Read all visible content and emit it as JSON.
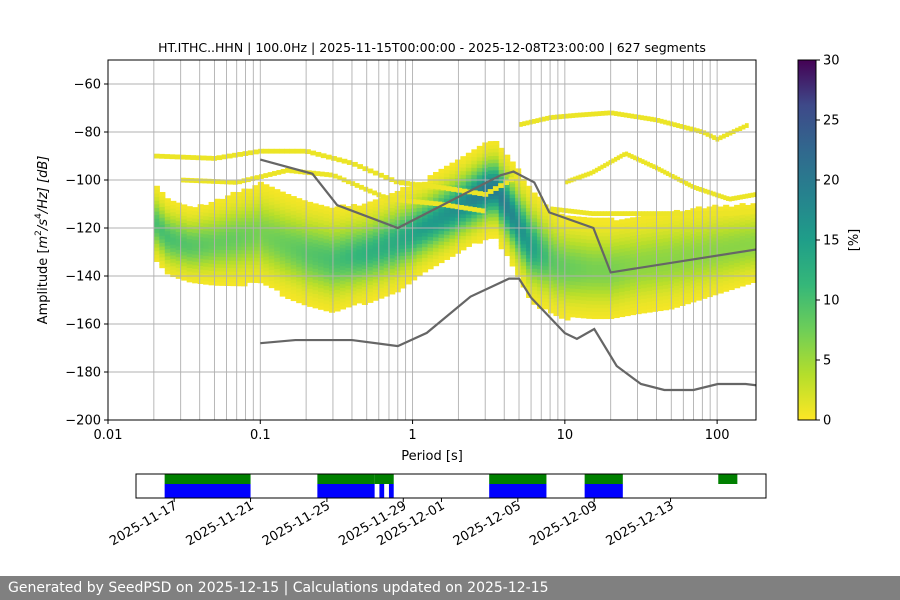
{
  "footer_text": "Generated by SeedPSD on 2025-12-15 | Calculations updated on 2025-12-15",
  "colors": {
    "noise_model": "#666666",
    "availability_data": "#0000ff",
    "availability_gaps": "#008000",
    "grid": "#b0b0b0"
  },
  "chart_data": [
    {
      "type": "heatmap",
      "title": "HT.ITHC..HHN | 100.0Hz | 2025-11-15T00:00:00 - 2025-12-08T23:00:00 | 627 segments",
      "xlabel": "Period [s]",
      "ylabel_parts": [
        "Amplitude [",
        "m",
        "2",
        "/s",
        "4",
        "/Hz] [dB]"
      ],
      "xscale": "log",
      "xlim": [
        0.01,
        180
      ],
      "ylim": [
        -200,
        -50
      ],
      "grid": true,
      "x_ticks": [
        {
          "value": 0.01,
          "label": "0.01"
        },
        {
          "value": 0.1,
          "label": "0.1"
        },
        {
          "value": 1,
          "label": "1"
        },
        {
          "value": 10,
          "label": "10"
        },
        {
          "value": 100,
          "label": "100"
        }
      ],
      "y_ticks": [
        {
          "value": -60,
          "label": "−60"
        },
        {
          "value": -80,
          "label": "−80"
        },
        {
          "value": -100,
          "label": "−100"
        },
        {
          "value": -120,
          "label": "−120"
        },
        {
          "value": -140,
          "label": "−140"
        },
        {
          "value": -160,
          "label": "−160"
        },
        {
          "value": -180,
          "label": "−180"
        },
        {
          "value": -200,
          "label": "−200"
        }
      ],
      "colorbar": {
        "label": "[%]",
        "range": [
          0,
          30
        ],
        "colormap": "viridis_r",
        "ticks": [
          {
            "value": 0,
            "label": "0"
          },
          {
            "value": 5,
            "label": "5"
          },
          {
            "value": 10,
            "label": "10"
          },
          {
            "value": 15,
            "label": "15"
          },
          {
            "value": 20,
            "label": "20"
          },
          {
            "value": 25,
            "label": "25"
          },
          {
            "value": 30,
            "label": "30"
          }
        ]
      },
      "psd_mode": {
        "period": [
          0.02,
          0.025,
          0.035,
          0.05,
          0.07,
          0.1,
          0.15,
          0.2,
          0.3,
          0.5,
          0.8,
          1.2,
          2,
          3,
          3.5,
          4.5,
          6,
          8,
          10,
          15,
          20,
          30,
          50,
          100,
          180
        ],
        "db": [
          -118,
          -125,
          -128,
          -127,
          -125,
          -123,
          -128,
          -131,
          -134,
          -131,
          -126,
          -120,
          -112,
          -105,
          -104,
          -115,
          -128,
          -134,
          -137,
          -138,
          -138,
          -136,
          -134,
          -130,
          -127
        ],
        "spread_db": [
          8,
          8,
          8,
          9,
          10,
          11,
          11,
          11,
          11,
          10,
          10,
          9,
          9,
          9,
          9,
          10,
          11,
          11,
          11,
          11,
          11,
          11,
          11,
          10,
          9
        ],
        "peak_percent": [
          10,
          10,
          9,
          8,
          8,
          7,
          8,
          9,
          10,
          12,
          13,
          15,
          17,
          20,
          20,
          18,
          15,
          9,
          8,
          7,
          7,
          6,
          6,
          6,
          6
        ]
      },
      "sparse_upper_traces": [
        {
          "period": [
            0.02,
            0.05,
            0.1,
            0.2,
            0.4,
            0.8,
            1.5,
            3,
            5
          ],
          "db": [
            -90,
            -91,
            -88,
            -88,
            -93,
            -101,
            -103,
            -106,
            -98
          ]
        },
        {
          "period": [
            0.03,
            0.07,
            0.15,
            0.3,
            0.7,
            1.5,
            3
          ],
          "db": [
            -100,
            -101,
            -96,
            -98,
            -108,
            -110,
            -113
          ]
        },
        {
          "period": [
            5,
            8,
            12,
            20,
            40,
            80,
            100,
            160
          ],
          "db": [
            -77,
            -74,
            -73,
            -72,
            -75,
            -80,
            -83,
            -77
          ]
        },
        {
          "period": [
            10,
            15,
            25,
            40,
            70,
            120,
            180
          ],
          "db": [
            -101,
            -97,
            -89,
            -95,
            -103,
            -108,
            -106
          ]
        },
        {
          "period": [
            8,
            15,
            30,
            60,
            120,
            180
          ],
          "db": [
            -112,
            -114,
            -114,
            -114,
            -114,
            -113
          ]
        }
      ],
      "series": [
        {
          "name": "NHNM",
          "period": [
            0.1,
            0.22,
            0.32,
            0.8,
            3.8,
            4.6,
            6.3,
            7.9,
            15.4,
            20,
            354.8
          ],
          "db": [
            -91.5,
            -97.4,
            -110.5,
            -120,
            -98,
            -96.5,
            -101,
            -113.5,
            -120,
            -138.5,
            -126
          ]
        },
        {
          "name": "NLNM",
          "period": [
            0.1,
            0.17,
            0.4,
            0.8,
            1.24,
            2.4,
            4.3,
            5,
            6,
            10,
            12,
            15.6,
            21.9,
            31.6,
            45,
            70,
            101,
            154,
            328
          ],
          "db": [
            -168,
            -166.7,
            -166.7,
            -169.2,
            -163.7,
            -148.6,
            -141.1,
            -141.1,
            -149,
            -163.8,
            -166.2,
            -162.1,
            -177.5,
            -185,
            -187.5,
            -187.5,
            -185,
            -185,
            -187.5
          ]
        }
      ]
    },
    {
      "type": "availability",
      "tick_labels": [
        "2025-11-17",
        "2025-11-21",
        "2025-11-25",
        "2025-11-29",
        "2025-12-01",
        "2025-12-05",
        "2025-12-09",
        "2025-12-13"
      ],
      "tick_days": [
        2,
        6,
        10,
        14,
        16,
        20,
        24,
        28
      ],
      "axis_start": "2025-11-15",
      "axis_span_days": [
        0,
        33
      ],
      "rows": [
        {
          "name": "gaps",
          "intervals_days": [
            [
              1.5,
              6.0
            ],
            [
              9.5,
              12.5
            ],
            [
              12.5,
              13.5
            ],
            [
              18.5,
              21.5
            ],
            [
              23.5,
              25.5
            ],
            [
              30.5,
              31.5
            ]
          ]
        },
        {
          "name": "data",
          "intervals_days": [
            [
              1.5,
              6.0
            ],
            [
              9.5,
              12.5
            ],
            [
              12.75,
              13.0
            ],
            [
              13.25,
              13.5
            ],
            [
              18.5,
              21.5
            ],
            [
              23.5,
              25.5
            ]
          ]
        }
      ]
    }
  ]
}
